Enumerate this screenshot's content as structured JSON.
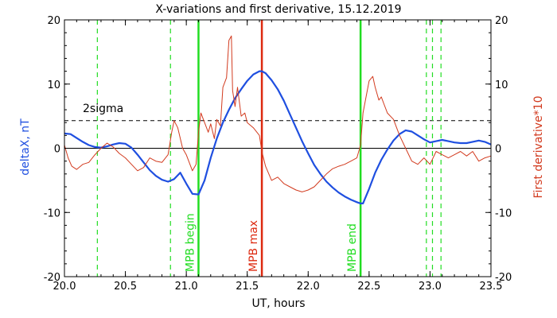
{
  "chart_data": {
    "type": "line",
    "title": "X-variations and first derivative, 15.12.2019",
    "xlabel": "UT, hours",
    "ylabel_left": "deltaX, nT",
    "ylabel_right": "First derivative*10",
    "xlim": [
      20.0,
      23.5
    ],
    "ylim_left": [
      -20,
      20
    ],
    "ylim_right": [
      -20,
      20
    ],
    "x_ticks": [
      "20.0",
      "20.5",
      "21.0",
      "21.5",
      "22.0",
      "22.5",
      "23.0",
      "23.5"
    ],
    "y_ticks_left": [
      "20",
      "10",
      "0",
      "-10",
      "-20"
    ],
    "y_ticks_right": [
      "20",
      "10",
      "0",
      "-10",
      "-20"
    ],
    "colors": {
      "deltaX": "#1f4fe0",
      "derivative": "#d23b1f",
      "mpb": "#22dd22",
      "mpb_max": "#dd2a10",
      "threshold": "#000000"
    },
    "threshold": {
      "label": "2sigma",
      "y": 4.3
    },
    "zero_line": 0,
    "series": [
      {
        "name": "deltaX",
        "axis": "left",
        "x": [
          20.0,
          20.05,
          20.1,
          20.15,
          20.2,
          20.25,
          20.3,
          20.35,
          20.4,
          20.45,
          20.5,
          20.55,
          20.6,
          20.65,
          20.7,
          20.75,
          20.8,
          20.85,
          20.9,
          20.95,
          21.0,
          21.05,
          21.1,
          21.15,
          21.2,
          21.25,
          21.3,
          21.35,
          21.4,
          21.45,
          21.5,
          21.55,
          21.6,
          21.62,
          21.65,
          21.7,
          21.75,
          21.8,
          21.85,
          21.9,
          21.95,
          22.0,
          22.05,
          22.1,
          22.15,
          22.2,
          22.25,
          22.3,
          22.35,
          22.4,
          22.43,
          22.45,
          22.5,
          22.55,
          22.6,
          22.65,
          22.7,
          22.75,
          22.8,
          22.85,
          22.9,
          22.95,
          23.0,
          23.05,
          23.1,
          23.15,
          23.2,
          23.25,
          23.3,
          23.35,
          23.4,
          23.45,
          23.5
        ],
        "values": [
          2.3,
          2.2,
          1.6,
          1.0,
          0.5,
          0.2,
          0.1,
          0.3,
          0.6,
          0.8,
          0.7,
          0.1,
          -1.0,
          -2.2,
          -3.4,
          -4.3,
          -4.9,
          -5.2,
          -4.8,
          -3.8,
          -5.5,
          -7.1,
          -7.2,
          -5.0,
          -1.5,
          1.5,
          4.0,
          6.0,
          7.8,
          9.2,
          10.5,
          11.5,
          12.0,
          12.0,
          11.7,
          10.6,
          9.2,
          7.4,
          5.3,
          3.2,
          1.1,
          -0.8,
          -2.6,
          -4.0,
          -5.2,
          -6.1,
          -6.9,
          -7.5,
          -8.0,
          -8.4,
          -8.6,
          -8.6,
          -6.3,
          -3.8,
          -1.8,
          -0.2,
          1.2,
          2.2,
          2.8,
          2.6,
          2.0,
          1.4,
          0.9,
          1.1,
          1.3,
          1.1,
          0.9,
          0.8,
          0.8,
          1.0,
          1.2,
          1.0,
          0.6
        ]
      },
      {
        "name": "First derivative*10",
        "axis": "right",
        "x": [
          20.0,
          20.03,
          20.06,
          20.1,
          20.15,
          20.2,
          20.25,
          20.3,
          20.35,
          20.4,
          20.45,
          20.5,
          20.55,
          20.6,
          20.65,
          20.7,
          20.75,
          20.8,
          20.85,
          20.88,
          20.9,
          20.93,
          20.97,
          21.0,
          21.05,
          21.08,
          21.1,
          21.12,
          21.15,
          21.18,
          21.2,
          21.23,
          21.25,
          21.28,
          21.3,
          21.33,
          21.35,
          21.37,
          21.38,
          21.4,
          21.42,
          21.45,
          21.48,
          21.5,
          21.55,
          21.6,
          21.62,
          21.65,
          21.7,
          21.75,
          21.8,
          21.85,
          21.9,
          21.95,
          22.0,
          22.05,
          22.1,
          22.15,
          22.2,
          22.25,
          22.3,
          22.35,
          22.4,
          22.43,
          22.45,
          22.48,
          22.5,
          22.53,
          22.55,
          22.58,
          22.6,
          22.62,
          22.65,
          22.7,
          22.75,
          22.8,
          22.85,
          22.9,
          22.95,
          23.0,
          23.05,
          23.1,
          23.15,
          23.2,
          23.25,
          23.3,
          23.35,
          23.4,
          23.45,
          23.5
        ],
        "values": [
          0.5,
          -1.5,
          -2.8,
          -3.3,
          -2.5,
          -2.2,
          -1.0,
          0.0,
          0.8,
          0.2,
          -0.8,
          -1.5,
          -2.5,
          -3.5,
          -3.0,
          -1.5,
          -2.0,
          -2.2,
          -1.0,
          2.5,
          4.3,
          3.2,
          0.0,
          -1.0,
          -3.5,
          -2.5,
          2.5,
          5.5,
          4.0,
          2.5,
          3.8,
          1.5,
          4.5,
          3.5,
          9.5,
          11.0,
          16.8,
          17.5,
          9.0,
          6.5,
          9.5,
          5.0,
          5.5,
          4.0,
          3.2,
          2.0,
          -0.5,
          -2.8,
          -5.0,
          -4.5,
          -5.5,
          -6.0,
          -6.5,
          -6.8,
          -6.5,
          -6.0,
          -5.0,
          -4.0,
          -3.2,
          -2.8,
          -2.5,
          -2.0,
          -1.5,
          0.5,
          5.5,
          8.5,
          10.5,
          11.2,
          9.5,
          7.5,
          8.0,
          7.0,
          5.5,
          4.5,
          2.0,
          0.0,
          -2.0,
          -2.5,
          -1.5,
          -2.5,
          -0.5,
          -1.0,
          -1.5,
          -1.0,
          -0.5,
          -1.2,
          -0.5,
          -2.0,
          -1.5,
          -1.2
        ]
      }
    ],
    "vlines": [
      {
        "x": 20.27,
        "style": "dashed",
        "color": "#22dd22",
        "label": ""
      },
      {
        "x": 20.87,
        "style": "dashed",
        "color": "#22dd22",
        "label": ""
      },
      {
        "x": 21.1,
        "style": "solid",
        "color": "#22dd22",
        "label": "MPB begin"
      },
      {
        "x": 21.62,
        "style": "solid",
        "color": "#dd2a10",
        "label": "MPB max"
      },
      {
        "x": 22.43,
        "style": "solid",
        "color": "#22dd22",
        "label": "MPB end"
      },
      {
        "x": 22.97,
        "style": "dashed",
        "color": "#22dd22",
        "label": ""
      },
      {
        "x": 23.02,
        "style": "dashed",
        "color": "#22dd22",
        "label": ""
      },
      {
        "x": 23.09,
        "style": "dashed",
        "color": "#22dd22",
        "label": ""
      }
    ],
    "grid": false,
    "legend": "none"
  }
}
